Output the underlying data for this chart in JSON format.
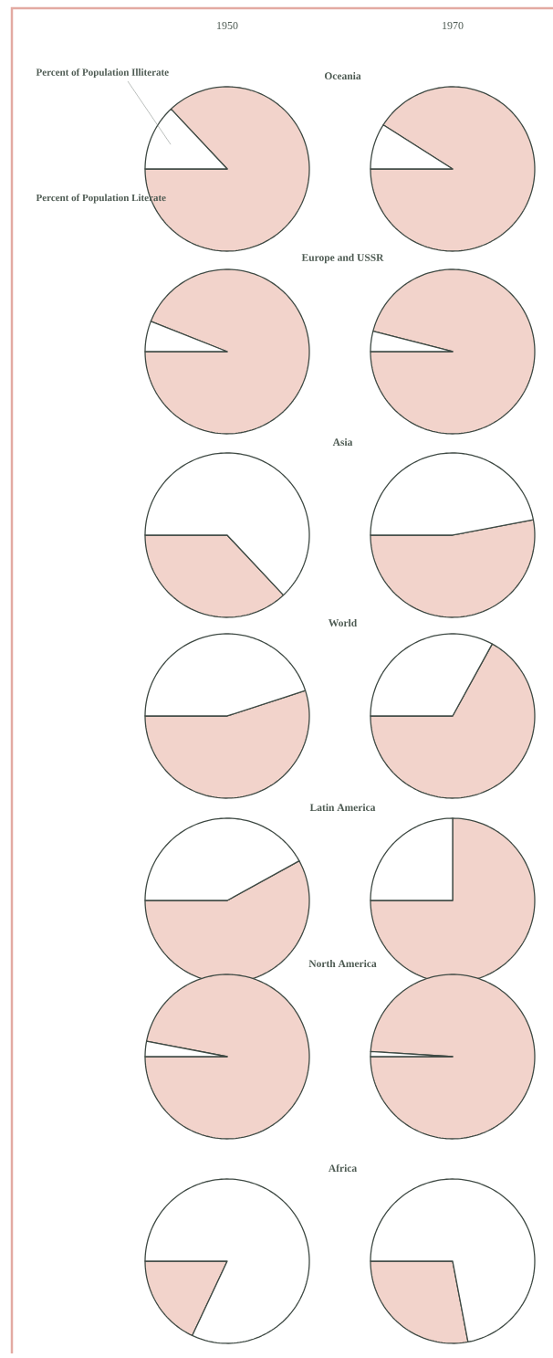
{
  "chart_data": [
    {
      "type": "pie",
      "subtitle": "1950",
      "title": "Oceania",
      "categories": [
        "Percent of Population Literate",
        "Percent of Population Illiterate"
      ],
      "values": [
        87,
        13
      ],
      "colors": [
        "#f2d3cb",
        "#ffffff"
      ]
    },
    {
      "type": "pie",
      "subtitle": "1970",
      "categories": [
        null,
        null
      ],
      "values": [
        91,
        9
      ],
      "colors": [
        "#f2d3cb",
        "#ffffff"
      ]
    },
    {
      "type": "pie",
      "title": "Europe and USSR",
      "categories": [
        null,
        null
      ],
      "values": [
        94,
        6
      ],
      "colors": [
        "#f2d3cb",
        "#ffffff"
      ]
    },
    {
      "type": "pie",
      "categories": [
        null,
        null
      ],
      "values": [
        96,
        4
      ],
      "colors": [
        "#f2d3cb",
        "#ffffff"
      ]
    },
    {
      "type": "pie",
      "title": "Asia",
      "categories": [
        null,
        null
      ],
      "values": [
        37,
        63
      ],
      "colors": [
        "#f2d3cb",
        "#ffffff"
      ]
    },
    {
      "type": "pie",
      "categories": [
        null,
        null
      ],
      "values": [
        53,
        47
      ],
      "colors": [
        "#f2d3cb",
        "#ffffff"
      ]
    },
    {
      "type": "pie",
      "title": "World",
      "categories": [
        null,
        null
      ],
      "values": [
        55,
        45
      ],
      "colors": [
        "#f2d3cb",
        "#ffffff"
      ]
    },
    {
      "type": "pie",
      "categories": [
        null,
        null
      ],
      "values": [
        67,
        33
      ],
      "colors": [
        "#f2d3cb",
        "#ffffff"
      ]
    },
    {
      "type": "pie",
      "title": "Latin America",
      "categories": [
        null,
        null
      ],
      "values": [
        58,
        42
      ],
      "colors": [
        "#f2d3cb",
        "#ffffff"
      ]
    },
    {
      "type": "pie",
      "categories": [
        null,
        null
      ],
      "values": [
        75,
        25
      ],
      "colors": [
        "#f2d3cb",
        "#ffffff"
      ]
    },
    {
      "type": "pie",
      "title": "North America",
      "categories": [
        null,
        null
      ],
      "values": [
        97,
        3
      ],
      "colors": [
        "#f2d3cb",
        "#ffffff"
      ]
    },
    {
      "type": "pie",
      "categories": [
        null,
        null
      ],
      "values": [
        99,
        1
      ],
      "colors": [
        "#f2d3cb",
        "#ffffff"
      ]
    },
    {
      "type": "pie",
      "title": "Africa",
      "categories": [
        null,
        null
      ],
      "values": [
        18,
        82
      ],
      "colors": [
        "#f2d3cb",
        "#ffffff"
      ]
    },
    {
      "type": "pie",
      "categories": [
        null,
        null
      ],
      "values": [
        28,
        72
      ],
      "colors": [
        "#f2d3cb",
        "#ffffff"
      ]
    }
  ]
}
